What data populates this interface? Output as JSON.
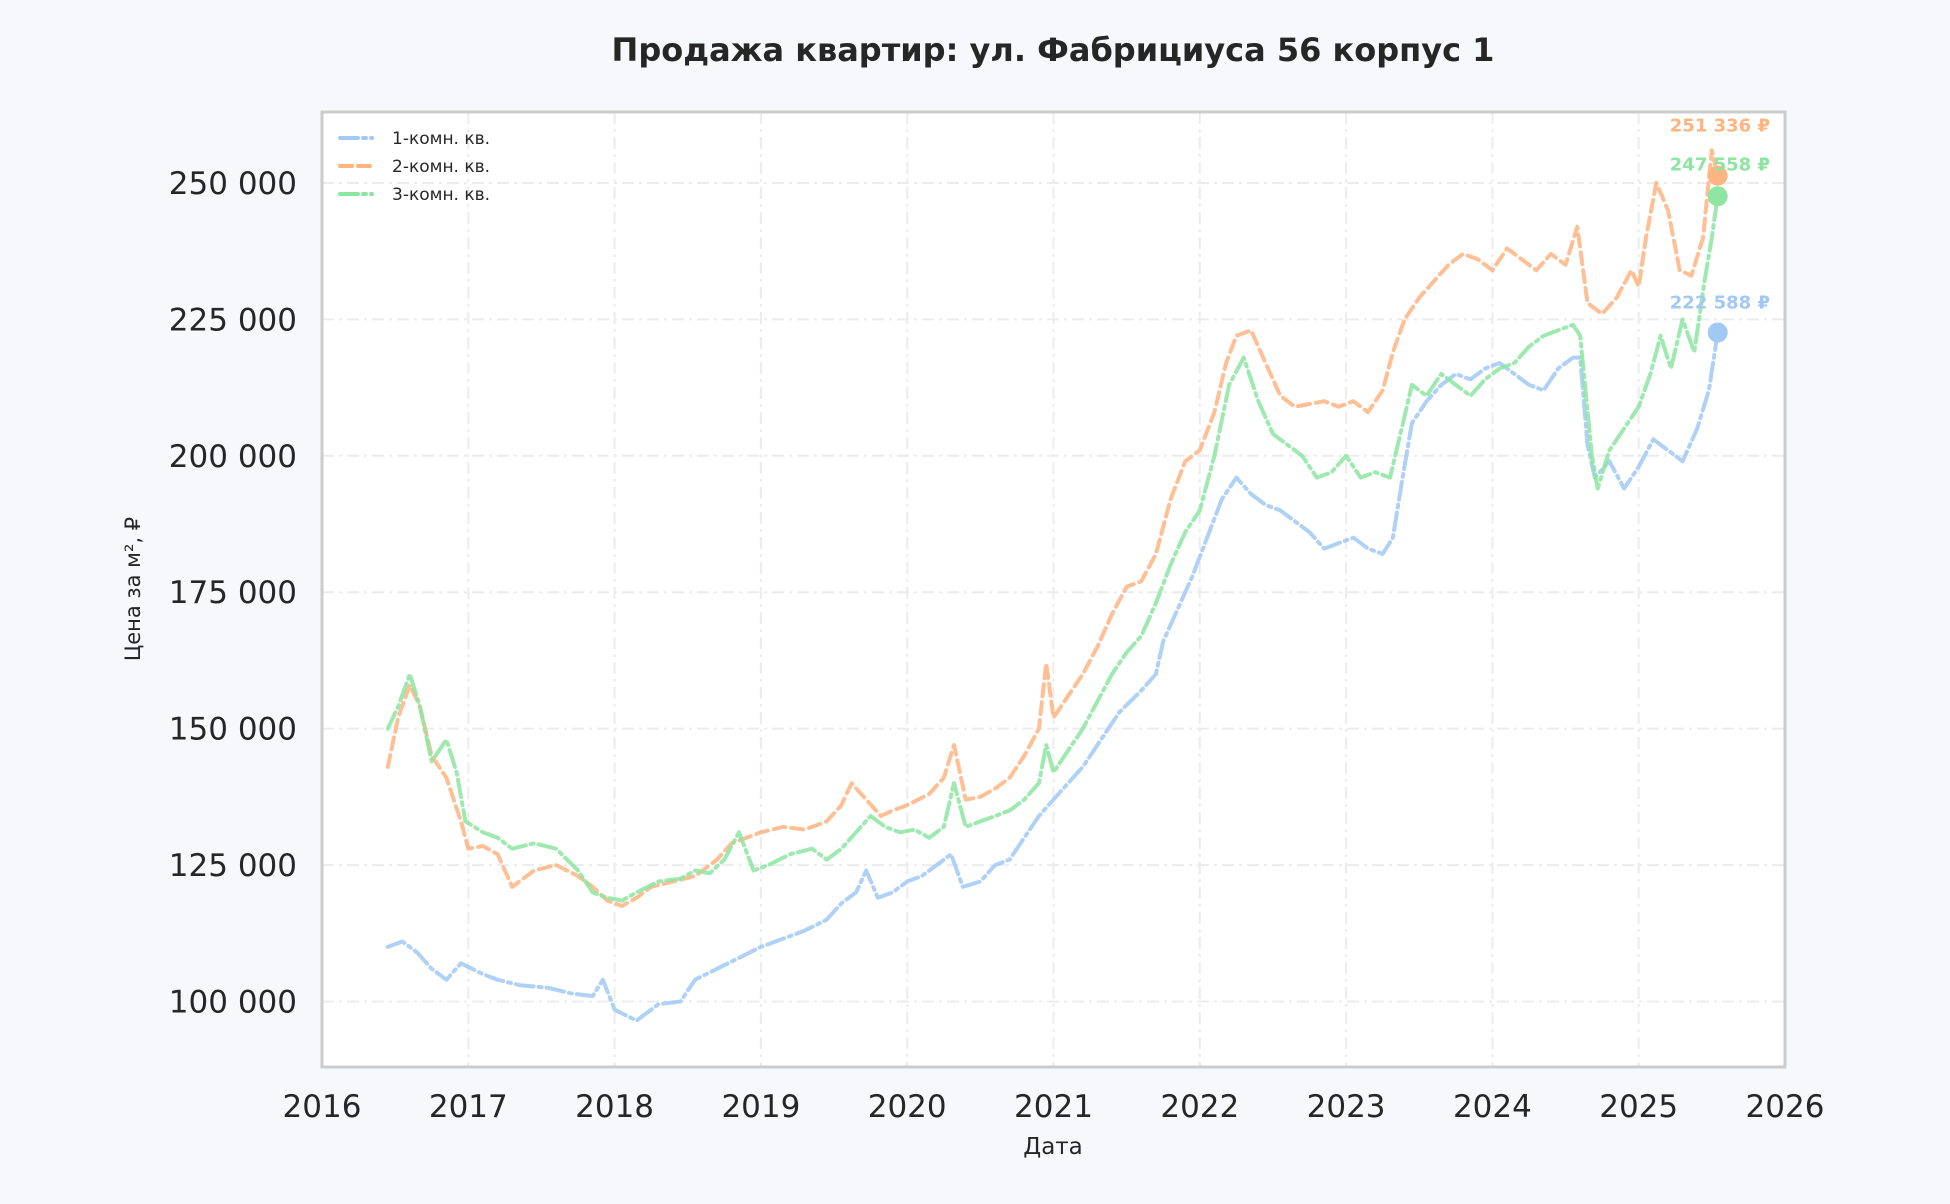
{
  "chart_data": {
    "type": "line",
    "title": "Продажа квартир: ул. Фабрициуса 56 корпус 1",
    "xlabel": "Дата",
    "ylabel": "Цена за м², ₽",
    "xlim": [
      2016,
      2026
    ],
    "ylim": [
      88000,
      263000
    ],
    "x_ticks": [
      "2016",
      "2017",
      "2018",
      "2019",
      "2020",
      "2021",
      "2022",
      "2023",
      "2024",
      "2025",
      "2026"
    ],
    "y_ticks": [
      "100 000",
      "125 000",
      "150 000",
      "175 000",
      "200 000",
      "225 000",
      "250 000"
    ],
    "y_tick_values": [
      100000,
      125000,
      150000,
      175000,
      200000,
      225000,
      250000
    ],
    "grid": true,
    "legend_position": "top-left",
    "series": [
      {
        "name": "1-комн. кв.",
        "color": "#a1c9f4",
        "dash": "dashdot",
        "last_label": "222 588 ₽",
        "last_value": 222588,
        "points": [
          [
            2016.45,
            110000
          ],
          [
            2016.55,
            111000
          ],
          [
            2016.65,
            109000
          ],
          [
            2016.75,
            106000
          ],
          [
            2016.85,
            104000
          ],
          [
            2016.95,
            107000
          ],
          [
            2017.1,
            105000
          ],
          [
            2017.2,
            104000
          ],
          [
            2017.35,
            103000
          ],
          [
            2017.55,
            102500
          ],
          [
            2017.7,
            101500
          ],
          [
            2017.85,
            101000
          ],
          [
            2017.92,
            104000
          ],
          [
            2018.0,
            98500
          ],
          [
            2018.15,
            96500
          ],
          [
            2018.3,
            99500
          ],
          [
            2018.45,
            100000
          ],
          [
            2018.55,
            104000
          ],
          [
            2018.7,
            106000
          ],
          [
            2018.85,
            108000
          ],
          [
            2019.0,
            110000
          ],
          [
            2019.15,
            111500
          ],
          [
            2019.3,
            113000
          ],
          [
            2019.45,
            115000
          ],
          [
            2019.55,
            118000
          ],
          [
            2019.65,
            120000
          ],
          [
            2019.72,
            124000
          ],
          [
            2019.8,
            119000
          ],
          [
            2019.9,
            120000
          ],
          [
            2020.0,
            122000
          ],
          [
            2020.1,
            123000
          ],
          [
            2020.2,
            125000
          ],
          [
            2020.3,
            127000
          ],
          [
            2020.38,
            121000
          ],
          [
            2020.5,
            122000
          ],
          [
            2020.6,
            125000
          ],
          [
            2020.7,
            126000
          ],
          [
            2020.8,
            130000
          ],
          [
            2020.9,
            134000
          ],
          [
            2021.0,
            137000
          ],
          [
            2021.1,
            140000
          ],
          [
            2021.2,
            143000
          ],
          [
            2021.3,
            147000
          ],
          [
            2021.45,
            153000
          ],
          [
            2021.6,
            157000
          ],
          [
            2021.7,
            160000
          ],
          [
            2021.75,
            166000
          ],
          [
            2021.85,
            172000
          ],
          [
            2021.95,
            178000
          ],
          [
            2022.05,
            185000
          ],
          [
            2022.15,
            192000
          ],
          [
            2022.25,
            196000
          ],
          [
            2022.35,
            193000
          ],
          [
            2022.45,
            191000
          ],
          [
            2022.55,
            190000
          ],
          [
            2022.65,
            188000
          ],
          [
            2022.75,
            186000
          ],
          [
            2022.85,
            183000
          ],
          [
            2022.95,
            184000
          ],
          [
            2023.05,
            185000
          ],
          [
            2023.15,
            183000
          ],
          [
            2023.25,
            182000
          ],
          [
            2023.32,
            185000
          ],
          [
            2023.38,
            195000
          ],
          [
            2023.45,
            206000
          ],
          [
            2023.55,
            210000
          ],
          [
            2023.65,
            213000
          ],
          [
            2023.75,
            215000
          ],
          [
            2023.85,
            214000
          ],
          [
            2023.95,
            216000
          ],
          [
            2024.05,
            217000
          ],
          [
            2024.15,
            215000
          ],
          [
            2024.25,
            213000
          ],
          [
            2024.35,
            212000
          ],
          [
            2024.45,
            216000
          ],
          [
            2024.55,
            218000
          ],
          [
            2024.6,
            218000
          ],
          [
            2024.65,
            202000
          ],
          [
            2024.7,
            196000
          ],
          [
            2024.8,
            199000
          ],
          [
            2024.9,
            194000
          ],
          [
            2025.0,
            198000
          ],
          [
            2025.1,
            203000
          ],
          [
            2025.2,
            201000
          ],
          [
            2025.3,
            199000
          ],
          [
            2025.4,
            205000
          ],
          [
            2025.48,
            212000
          ],
          [
            2025.54,
            222588
          ]
        ]
      },
      {
        "name": "2-комн. кв.",
        "color": "#ffb482",
        "dash": "dashed",
        "last_label": "251 336 ₽",
        "last_value": 251336,
        "points": [
          [
            2016.45,
            143000
          ],
          [
            2016.52,
            152000
          ],
          [
            2016.6,
            158000
          ],
          [
            2016.67,
            154000
          ],
          [
            2016.75,
            145000
          ],
          [
            2016.85,
            141000
          ],
          [
            2016.95,
            133000
          ],
          [
            2017.0,
            128000
          ],
          [
            2017.1,
            128500
          ],
          [
            2017.2,
            127000
          ],
          [
            2017.3,
            121000
          ],
          [
            2017.45,
            124000
          ],
          [
            2017.6,
            125000
          ],
          [
            2017.75,
            123000
          ],
          [
            2017.85,
            121000
          ],
          [
            2017.95,
            118500
          ],
          [
            2018.05,
            117500
          ],
          [
            2018.15,
            119000
          ],
          [
            2018.25,
            121000
          ],
          [
            2018.4,
            122000
          ],
          [
            2018.55,
            123000
          ],
          [
            2018.7,
            126000
          ],
          [
            2018.8,
            129000
          ],
          [
            2018.9,
            130000
          ],
          [
            2019.0,
            131000
          ],
          [
            2019.15,
            132000
          ],
          [
            2019.3,
            131500
          ],
          [
            2019.45,
            133000
          ],
          [
            2019.55,
            136000
          ],
          [
            2019.62,
            140000
          ],
          [
            2019.72,
            137000
          ],
          [
            2019.82,
            134000
          ],
          [
            2019.9,
            135000
          ],
          [
            2020.0,
            136000
          ],
          [
            2020.15,
            138000
          ],
          [
            2020.25,
            141000
          ],
          [
            2020.32,
            147000
          ],
          [
            2020.4,
            137000
          ],
          [
            2020.5,
            137500
          ],
          [
            2020.6,
            139000
          ],
          [
            2020.7,
            141000
          ],
          [
            2020.8,
            145000
          ],
          [
            2020.9,
            150000
          ],
          [
            2020.95,
            162000
          ],
          [
            2021.0,
            152000
          ],
          [
            2021.1,
            156000
          ],
          [
            2021.2,
            160000
          ],
          [
            2021.3,
            165000
          ],
          [
            2021.4,
            171000
          ],
          [
            2021.5,
            176000
          ],
          [
            2021.6,
            177000
          ],
          [
            2021.7,
            182000
          ],
          [
            2021.8,
            192000
          ],
          [
            2021.9,
            199000
          ],
          [
            2022.0,
            201000
          ],
          [
            2022.1,
            208000
          ],
          [
            2022.18,
            217000
          ],
          [
            2022.25,
            222000
          ],
          [
            2022.35,
            223000
          ],
          [
            2022.45,
            217000
          ],
          [
            2022.55,
            211000
          ],
          [
            2022.65,
            209000
          ],
          [
            2022.75,
            209500
          ],
          [
            2022.85,
            210000
          ],
          [
            2022.95,
            209000
          ],
          [
            2023.05,
            210000
          ],
          [
            2023.15,
            208000
          ],
          [
            2023.25,
            212000
          ],
          [
            2023.32,
            219000
          ],
          [
            2023.4,
            225000
          ],
          [
            2023.5,
            229000
          ],
          [
            2023.6,
            232000
          ],
          [
            2023.7,
            235000
          ],
          [
            2023.8,
            237000
          ],
          [
            2023.9,
            236000
          ],
          [
            2024.0,
            234000
          ],
          [
            2024.1,
            238000
          ],
          [
            2024.2,
            236000
          ],
          [
            2024.3,
            234000
          ],
          [
            2024.4,
            237000
          ],
          [
            2024.5,
            235000
          ],
          [
            2024.58,
            242000
          ],
          [
            2024.65,
            228000
          ],
          [
            2024.75,
            226000
          ],
          [
            2024.85,
            229000
          ],
          [
            2024.95,
            234000
          ],
          [
            2025.0,
            231000
          ],
          [
            2025.05,
            240000
          ],
          [
            2025.12,
            250000
          ],
          [
            2025.2,
            245000
          ],
          [
            2025.28,
            234000
          ],
          [
            2025.36,
            233000
          ],
          [
            2025.44,
            240000
          ],
          [
            2025.5,
            256000
          ],
          [
            2025.54,
            251336
          ]
        ]
      },
      {
        "name": "3-комн. кв.",
        "color": "#8de5a1",
        "dash": "dashdot",
        "last_label": "247 558 ₽",
        "last_value": 247558,
        "points": [
          [
            2016.45,
            150000
          ],
          [
            2016.52,
            154000
          ],
          [
            2016.6,
            160000
          ],
          [
            2016.67,
            154000
          ],
          [
            2016.75,
            144000
          ],
          [
            2016.85,
            148000
          ],
          [
            2016.92,
            142000
          ],
          [
            2016.98,
            133000
          ],
          [
            2017.1,
            131000
          ],
          [
            2017.2,
            130000
          ],
          [
            2017.3,
            128000
          ],
          [
            2017.45,
            129000
          ],
          [
            2017.6,
            128000
          ],
          [
            2017.75,
            124000
          ],
          [
            2017.85,
            120000
          ],
          [
            2017.95,
            119000
          ],
          [
            2018.05,
            118500
          ],
          [
            2018.15,
            120000
          ],
          [
            2018.3,
            122000
          ],
          [
            2018.45,
            122500
          ],
          [
            2018.55,
            124000
          ],
          [
            2018.65,
            123500
          ],
          [
            2018.75,
            126000
          ],
          [
            2018.85,
            131000
          ],
          [
            2018.95,
            124000
          ],
          [
            2019.05,
            125000
          ],
          [
            2019.2,
            127000
          ],
          [
            2019.35,
            128000
          ],
          [
            2019.45,
            126000
          ],
          [
            2019.55,
            128000
          ],
          [
            2019.65,
            131000
          ],
          [
            2019.75,
            134000
          ],
          [
            2019.85,
            132000
          ],
          [
            2019.95,
            131000
          ],
          [
            2020.05,
            131500
          ],
          [
            2020.15,
            130000
          ],
          [
            2020.25,
            132000
          ],
          [
            2020.32,
            140000
          ],
          [
            2020.4,
            132000
          ],
          [
            2020.5,
            133000
          ],
          [
            2020.6,
            134000
          ],
          [
            2020.7,
            135000
          ],
          [
            2020.8,
            137000
          ],
          [
            2020.9,
            140000
          ],
          [
            2020.95,
            147000
          ],
          [
            2021.0,
            142000
          ],
          [
            2021.1,
            146000
          ],
          [
            2021.2,
            150000
          ],
          [
            2021.3,
            155000
          ],
          [
            2021.4,
            160000
          ],
          [
            2021.5,
            164000
          ],
          [
            2021.6,
            167000
          ],
          [
            2021.7,
            173000
          ],
          [
            2021.8,
            180000
          ],
          [
            2021.9,
            186000
          ],
          [
            2022.0,
            190000
          ],
          [
            2022.1,
            200000
          ],
          [
            2022.2,
            213000
          ],
          [
            2022.3,
            218000
          ],
          [
            2022.4,
            210000
          ],
          [
            2022.5,
            204000
          ],
          [
            2022.6,
            202000
          ],
          [
            2022.7,
            200000
          ],
          [
            2022.8,
            196000
          ],
          [
            2022.9,
            197000
          ],
          [
            2023.0,
            200000
          ],
          [
            2023.1,
            196000
          ],
          [
            2023.2,
            197000
          ],
          [
            2023.3,
            196000
          ],
          [
            2023.38,
            205000
          ],
          [
            2023.45,
            213000
          ],
          [
            2023.55,
            211000
          ],
          [
            2023.65,
            215000
          ],
          [
            2023.75,
            213000
          ],
          [
            2023.85,
            211000
          ],
          [
            2023.95,
            214000
          ],
          [
            2024.05,
            216000
          ],
          [
            2024.15,
            217000
          ],
          [
            2024.25,
            220000
          ],
          [
            2024.35,
            222000
          ],
          [
            2024.45,
            223000
          ],
          [
            2024.55,
            224000
          ],
          [
            2024.6,
            222000
          ],
          [
            2024.68,
            200000
          ],
          [
            2024.72,
            194000
          ],
          [
            2024.8,
            201000
          ],
          [
            2024.9,
            205000
          ],
          [
            2025.0,
            209000
          ],
          [
            2025.08,
            215000
          ],
          [
            2025.15,
            222000
          ],
          [
            2025.22,
            216000
          ],
          [
            2025.3,
            225000
          ],
          [
            2025.38,
            219000
          ],
          [
            2025.45,
            232000
          ],
          [
            2025.5,
            240000
          ],
          [
            2025.54,
            247558
          ]
        ]
      }
    ]
  }
}
